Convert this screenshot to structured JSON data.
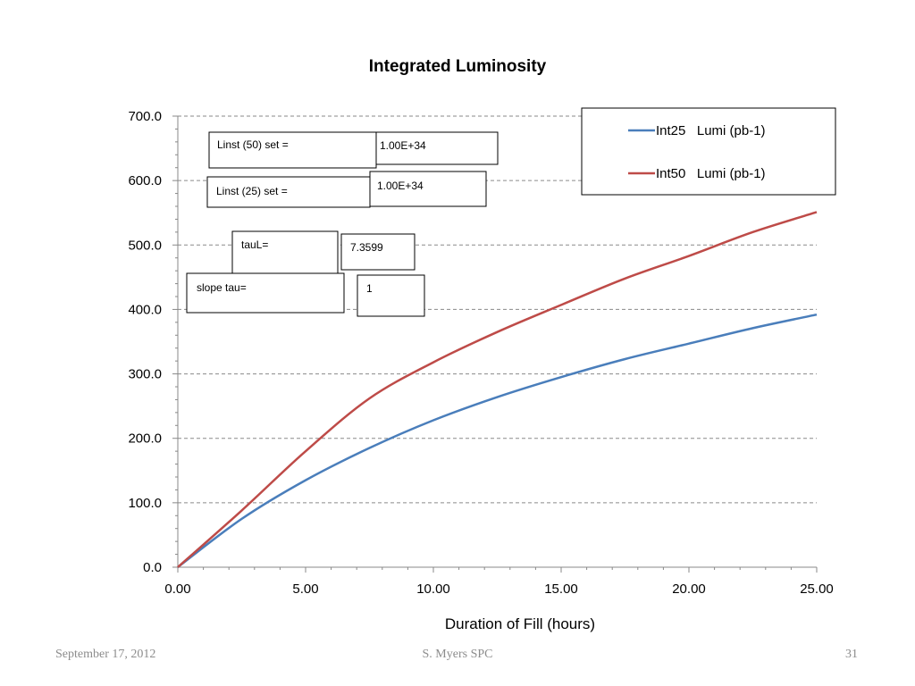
{
  "chart_data": {
    "type": "line",
    "title": "Integrated Luminosity",
    "xlabel": "Duration of Fill (hours)",
    "ylabel": "",
    "xlim": [
      0,
      25
    ],
    "ylim": [
      0,
      700
    ],
    "x_ticks": [
      "0.00",
      "5.00",
      "10.00",
      "15.00",
      "20.00",
      "25.00"
    ],
    "y_ticks": [
      "0.0",
      "100.0",
      "200.0",
      "300.0",
      "400.0",
      "500.0",
      "600.0",
      "700.0"
    ],
    "grid": "horizontal-dashed",
    "legend_position": "top-right",
    "x": [
      0,
      2.5,
      5,
      7.5,
      10,
      12.5,
      15,
      17.5,
      20,
      22.5,
      25
    ],
    "series": [
      {
        "name": "Int25   Lumi (pb-1)",
        "color": "#4a7ebb",
        "values": [
          0,
          75,
          135,
          185,
          228,
          264,
          295,
          323,
          347,
          371,
          392
        ]
      },
      {
        "name": "Int50   Lumi (pb-1)",
        "color": "#be4b48",
        "values": [
          0,
          88,
          180,
          262,
          318,
          365,
          407,
          448,
          483,
          520,
          551
        ]
      }
    ]
  },
  "annotations": {
    "linst50_label": "Linst (50) set =",
    "linst50_value": "1.00E+34",
    "linst25_label": "Linst (25) set =",
    "linst25_value": "1.00E+34",
    "taul_label": "tauL=",
    "taul_value": "7.3599",
    "slope_label": "slope tau=",
    "slope_value": "1"
  },
  "footer": {
    "date": "September 17, 2012",
    "author": "S. Myers SPC",
    "page_number": "31"
  }
}
